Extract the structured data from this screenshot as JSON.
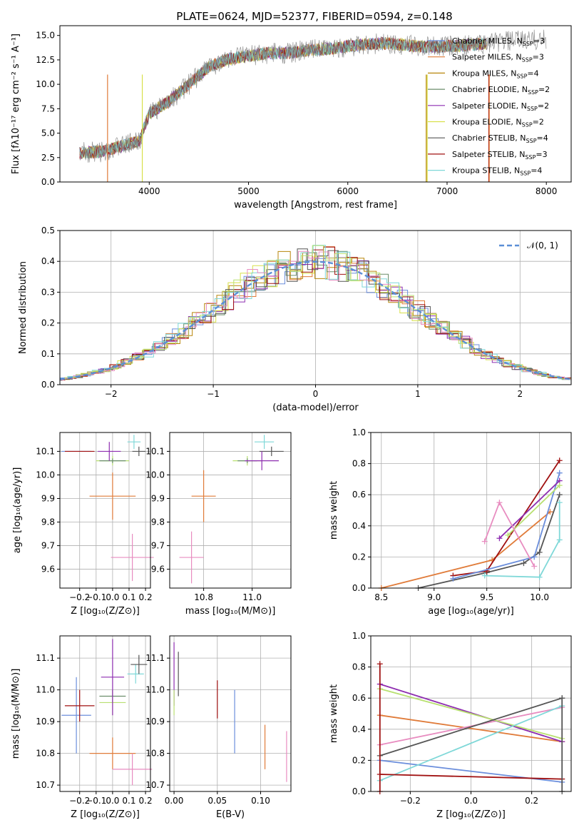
{
  "title": "PLATE=0624, MJD=52377, FIBERID=0594, z=0.148",
  "colors": {
    "chabrier_miles": "#6b8edc",
    "salpeter_miles": "#e07b39",
    "kroupa_miles": "#b8860b",
    "chabrier_elodie": "#6b8e6b",
    "salpeter_elodie": "#8e2db0",
    "kroupa_elodie": "#d8e04a",
    "chabrier_stelib": "#555555",
    "salpeter_stelib": "#a01010",
    "kroupa_stelib": "#7fd8d8",
    "extra_pink": "#e88cc0",
    "extra_lime": "#b8e070",
    "normal_curve": "#5b8fd6"
  },
  "chart_data": [
    {
      "id": "spectrum",
      "type": "line",
      "title": "PLATE=0624, MJD=52377, FIBERID=0594, z=0.148",
      "xlabel": "wavelength [Angstrom, rest frame]",
      "ylabel": "Flux [fλ10⁻¹⁷ erg cm⁻² s⁻¹ A⁻¹]",
      "xlim": [
        3100,
        8250
      ],
      "ylim": [
        0,
        16
      ],
      "xticks": [
        4000,
        5000,
        6000,
        7000,
        8000
      ],
      "yticks": [
        0.0,
        2.5,
        5.0,
        7.5,
        10.0,
        12.5,
        15.0
      ],
      "legend": [
        {
          "label": "Chabrier MILES, N",
          "sub": "SSP",
          "suffix": "=3",
          "color": "#6b8edc"
        },
        {
          "label": "Salpeter MILES, N",
          "sub": "SSP",
          "suffix": "=3",
          "color": "#e07b39"
        },
        {
          "label": "Kroupa MILES, N",
          "sub": "SSP",
          "suffix": "=4",
          "color": "#b8860b"
        },
        {
          "label": "Chabrier ELODIE, N",
          "sub": "SSP",
          "suffix": "=2",
          "color": "#6b8e6b"
        },
        {
          "label": "Salpeter ELODIE, N",
          "sub": "SSP",
          "suffix": "=2",
          "color": "#8e2db0"
        },
        {
          "label": "Kroupa ELODIE, N",
          "sub": "SSP",
          "suffix": "=2",
          "color": "#d8e04a"
        },
        {
          "label": "Chabrier STELIB, N",
          "sub": "SSP",
          "suffix": "=4",
          "color": "#555555"
        },
        {
          "label": "Salpeter STELIB, N",
          "sub": "SSP",
          "suffix": "=3",
          "color": "#a01010"
        },
        {
          "label": "Kroupa STELIB, N",
          "sub": "SSP",
          "suffix": "=4",
          "color": "#7fd8d8"
        }
      ],
      "series": [
        {
          "name": "data",
          "color": "#808080",
          "x": [
            3300,
            3500,
            3700,
            3900,
            4000,
            4200,
            4400,
            4600,
            4800,
            5000,
            5200,
            5400,
            5600,
            5800,
            6000,
            6200,
            6400,
            6600,
            6800,
            7000,
            7200,
            7400,
            7600,
            7800,
            8000
          ],
          "y": [
            3.0,
            3.1,
            3.6,
            4.2,
            7.0,
            8.3,
            10.0,
            11.8,
            12.6,
            12.9,
            13.2,
            13.2,
            13.5,
            13.6,
            13.9,
            14.1,
            14.2,
            14.0,
            13.8,
            13.9,
            14.0,
            14.2,
            14.4,
            14.5,
            14.6
          ]
        },
        {
          "name": "model",
          "color": "#7fd8d8",
          "x": [
            3300,
            3500,
            3700,
            3900,
            4000,
            4200,
            4400,
            4600,
            4800,
            5000,
            5200,
            5400,
            5600,
            5800,
            6000,
            6200,
            6400,
            6600,
            6800,
            7000,
            7200,
            7400
          ],
          "y": [
            3.1,
            3.1,
            3.7,
            4.3,
            7.0,
            8.4,
            10.1,
            11.9,
            12.6,
            12.9,
            13.1,
            13.2,
            13.5,
            13.7,
            13.9,
            14.0,
            14.1,
            14.0,
            13.8,
            13.8,
            14.0,
            14.0
          ]
        }
      ]
    },
    {
      "id": "residuals",
      "type": "line",
      "xlabel": "(data-model)/error",
      "ylabel": "Normed distribution",
      "xlim": [
        -2.5,
        2.5
      ],
      "ylim": [
        0,
        0.5
      ],
      "xticks": [
        -2,
        -1,
        0,
        1,
        2
      ],
      "yticks": [
        0.0,
        0.1,
        0.2,
        0.3,
        0.4,
        0.5
      ],
      "legend": [
        {
          "label": "𝒩(0, 1)",
          "color": "#5b8fd6"
        }
      ],
      "histogram": {
        "x": [
          -2.5,
          -2.3,
          -2.1,
          -1.9,
          -1.7,
          -1.5,
          -1.3,
          -1.1,
          -0.9,
          -0.7,
          -0.5,
          -0.3,
          -0.1,
          0.1,
          0.3,
          0.5,
          0.7,
          0.9,
          1.1,
          1.3,
          1.5,
          1.7,
          1.9,
          2.1,
          2.3
        ],
        "y": [
          0.02,
          0.04,
          0.06,
          0.09,
          0.12,
          0.16,
          0.2,
          0.25,
          0.3,
          0.34,
          0.37,
          0.39,
          0.4,
          0.39,
          0.37,
          0.34,
          0.3,
          0.25,
          0.2,
          0.16,
          0.12,
          0.09,
          0.06,
          0.04,
          0.02
        ]
      }
    },
    {
      "id": "age-vs-Z",
      "type": "scatter",
      "xlabel": "Z [log₁₀(Z/Z⊙)]",
      "ylabel": "age  [log₁₀(age/yr)]",
      "xlim": [
        -0.32,
        0.23
      ],
      "ylim": [
        9.52,
        10.18
      ],
      "xticks": [
        -0.2,
        -0.1,
        0.0,
        0.1,
        0.2
      ],
      "yticks": [
        9.6,
        9.7,
        9.8,
        9.9,
        10.0,
        10.1
      ],
      "points": [
        {
          "x": -0.22,
          "y": 10.1,
          "xerr": 0.09,
          "yerr": 0.0,
          "color": "#6b8edc"
        },
        {
          "x": -0.2,
          "y": 10.1,
          "xerr": 0.09,
          "yerr": 0.0,
          "color": "#a01010"
        },
        {
          "x": 0.0,
          "y": 9.91,
          "xerr": 0.14,
          "yerr": 0.1,
          "color": "#e07b39"
        },
        {
          "x": 0.12,
          "y": 9.65,
          "xerr": 0.13,
          "yerr": 0.1,
          "color": "#e88cc0"
        },
        {
          "x": 0.0,
          "y": 10.06,
          "xerr": 0.1,
          "yerr": 0.02,
          "color": "#b8e070"
        },
        {
          "x": 0.0,
          "y": 10.06,
          "xerr": 0.08,
          "yerr": 0.01,
          "color": "#6b8e6b"
        },
        {
          "x": 0.13,
          "y": 10.14,
          "xerr": 0.04,
          "yerr": 0.03,
          "color": "#7fd8d8"
        },
        {
          "x": 0.16,
          "y": 10.1,
          "xerr": 0.04,
          "yerr": 0.02,
          "color": "#555555"
        },
        {
          "x": -0.02,
          "y": 10.1,
          "xerr": 0.07,
          "yerr": 0.04,
          "color": "#8e2db0"
        }
      ]
    },
    {
      "id": "age-vs-mass",
      "type": "scatter",
      "xlabel": "mass [log₁₀(M/M⊙)]",
      "ylabel": "",
      "xlim": [
        10.66,
        11.16
      ],
      "ylim": [
        9.52,
        10.18
      ],
      "xticks": [
        10.8,
        11.0
      ],
      "yticks": [
        9.6,
        9.7,
        9.8,
        9.9,
        10.0,
        10.1
      ],
      "points": [
        {
          "x": 10.92,
          "y": 10.1,
          "xerr": 0.0,
          "yerr": 0.0,
          "color": "#6b8edc"
        },
        {
          "x": 10.96,
          "y": 10.1,
          "xerr": 0.0,
          "yerr": 0.0,
          "color": "#a01010"
        },
        {
          "x": 10.8,
          "y": 9.91,
          "xerr": 0.05,
          "yerr": 0.11,
          "color": "#e07b39"
        },
        {
          "x": 10.75,
          "y": 9.65,
          "xerr": 0.05,
          "yerr": 0.11,
          "color": "#e88cc0"
        },
        {
          "x": 10.98,
          "y": 10.06,
          "xerr": 0.06,
          "yerr": 0.02,
          "color": "#b8e070"
        },
        {
          "x": 10.98,
          "y": 10.06,
          "xerr": 0.04,
          "yerr": 0.01,
          "color": "#6b8e6b"
        },
        {
          "x": 11.05,
          "y": 10.14,
          "xerr": 0.04,
          "yerr": 0.03,
          "color": "#7fd8d8"
        },
        {
          "x": 11.08,
          "y": 10.1,
          "xerr": 0.05,
          "yerr": 0.02,
          "color": "#555555"
        },
        {
          "x": 11.04,
          "y": 10.06,
          "xerr": 0.07,
          "yerr": 0.04,
          "color": "#8e2db0"
        }
      ]
    },
    {
      "id": "massweight-vs-age",
      "type": "line",
      "xlabel": "age  [log₁₀(age/yr)]",
      "ylabel": "mass weight",
      "xlim": [
        8.4,
        10.3
      ],
      "ylim": [
        0,
        1
      ],
      "xticks": [
        8.5,
        9.0,
        9.5,
        10.0
      ],
      "yticks": [
        0.0,
        0.2,
        0.4,
        0.6,
        0.8,
        1.0
      ],
      "series": [
        {
          "color": "#e07b39",
          "x": [
            8.5,
            9.55,
            10.1
          ],
          "y": [
            0.0,
            0.18,
            0.49
          ]
        },
        {
          "color": "#555555",
          "x": [
            8.85,
            9.5,
            9.85,
            10.0,
            10.19
          ],
          "y": [
            0.0,
            0.1,
            0.16,
            0.23,
            0.6
          ]
        },
        {
          "color": "#a01010",
          "x": [
            9.18,
            9.5,
            10.19
          ],
          "y": [
            0.08,
            0.11,
            0.82
          ]
        },
        {
          "color": "#6b8edc",
          "x": [
            9.18,
            9.95,
            10.19
          ],
          "y": [
            0.06,
            0.2,
            0.74
          ]
        },
        {
          "color": "#8e2db0",
          "x": [
            9.62,
            10.19
          ],
          "y": [
            0.32,
            0.69
          ]
        },
        {
          "color": "#b8e070",
          "x": [
            9.7,
            10.19
          ],
          "y": [
            0.34,
            0.66
          ]
        },
        {
          "color": "#e88cc0",
          "x": [
            9.48,
            9.62,
            9.95
          ],
          "y": [
            0.3,
            0.55,
            0.14
          ]
        },
        {
          "color": "#7fd8d8",
          "x": [
            9.48,
            10.0,
            10.19,
            10.19
          ],
          "y": [
            0.08,
            0.07,
            0.31,
            0.55
          ]
        }
      ]
    },
    {
      "id": "mass-vs-Z",
      "type": "scatter",
      "xlabel": "Z [log₁₀(Z/Z⊙)]",
      "ylabel": "mass [log₁₀(M/M⊙)]",
      "xlim": [
        -0.32,
        0.23
      ],
      "ylim": [
        10.68,
        11.17
      ],
      "xticks": [
        -0.2,
        -0.1,
        0.0,
        0.1,
        0.2
      ],
      "yticks": [
        10.7,
        10.8,
        10.9,
        11.0,
        11.1
      ],
      "points": [
        {
          "x": -0.22,
          "y": 10.92,
          "xerr": 0.09,
          "yerr": 0.12,
          "color": "#6b8edc"
        },
        {
          "x": -0.2,
          "y": 10.95,
          "xerr": 0.09,
          "yerr": 0.05,
          "color": "#a01010"
        },
        {
          "x": 0.0,
          "y": 10.8,
          "xerr": 0.14,
          "yerr": 0.05,
          "color": "#e07b39"
        },
        {
          "x": 0.12,
          "y": 10.75,
          "xerr": 0.12,
          "yerr": 0.05,
          "color": "#e88cc0"
        },
        {
          "x": 0.0,
          "y": 10.96,
          "xerr": 0.08,
          "yerr": 0.04,
          "color": "#b8e070"
        },
        {
          "x": 0.0,
          "y": 10.98,
          "xerr": 0.08,
          "yerr": 0.02,
          "color": "#6b8e6b"
        },
        {
          "x": 0.14,
          "y": 11.05,
          "xerr": 0.05,
          "yerr": 0.03,
          "color": "#7fd8d8"
        },
        {
          "x": 0.16,
          "y": 11.08,
          "xerr": 0.05,
          "yerr": 0.03,
          "color": "#555555"
        },
        {
          "x": 0.0,
          "y": 11.04,
          "xerr": 0.07,
          "yerr": 0.12,
          "color": "#8e2db0"
        }
      ]
    },
    {
      "id": "mass-vs-EBV",
      "type": "scatter",
      "xlabel": "E(B-V)",
      "ylabel": "",
      "xlim": [
        -0.005,
        0.135
      ],
      "ylim": [
        10.68,
        11.17
      ],
      "xticks": [
        0.0,
        0.05,
        0.1
      ],
      "yticks": [
        10.7,
        10.8,
        10.9,
        11.0,
        11.1
      ],
      "points": [
        {
          "x": 0.0,
          "y": 11.05,
          "xerr": 0.0,
          "yerr": 0.1,
          "color": "#8e2db0"
        },
        {
          "x": 0.0,
          "y": 10.96,
          "xerr": 0.0,
          "yerr": 0.04,
          "color": "#b8e070"
        },
        {
          "x": 0.005,
          "y": 11.05,
          "xerr": 0.0,
          "yerr": 0.07,
          "color": "#555555"
        },
        {
          "x": 0.05,
          "y": 10.97,
          "xerr": 0.0,
          "yerr": 0.06,
          "color": "#a01010"
        },
        {
          "x": 0.07,
          "y": 10.9,
          "xerr": 0.0,
          "yerr": 0.1,
          "color": "#6b8edc"
        },
        {
          "x": 0.105,
          "y": 10.82,
          "xerr": 0.0,
          "yerr": 0.07,
          "color": "#e07b39"
        },
        {
          "x": 0.13,
          "y": 10.79,
          "xerr": 0.0,
          "yerr": 0.08,
          "color": "#e88cc0"
        }
      ]
    },
    {
      "id": "massweight-vs-Z",
      "type": "line",
      "xlabel": "Z [log₁₀(Z/Z⊙)]",
      "ylabel": "mass weight",
      "xlim": [
        -0.33,
        0.33
      ],
      "ylim": [
        0,
        1
      ],
      "xticks": [
        -0.2,
        0.0,
        0.2
      ],
      "yticks": [
        0.0,
        0.2,
        0.4,
        0.6,
        0.8,
        1.0
      ],
      "series": [
        {
          "color": "#6b8edc",
          "x": [
            -0.3,
            0.3
          ],
          "y": [
            0.2,
            0.06
          ]
        },
        {
          "color": "#e07b39",
          "x": [
            -0.3,
            0.3
          ],
          "y": [
            0.49,
            0.32
          ]
        },
        {
          "color": "#e88cc0",
          "x": [
            -0.3,
            0.3
          ],
          "y": [
            0.3,
            0.54
          ]
        },
        {
          "color": "#8e2db0",
          "x": [
            -0.3,
            0.3
          ],
          "y": [
            0.69,
            0.32
          ]
        },
        {
          "color": "#b8e070",
          "x": [
            -0.3,
            0.3
          ],
          "y": [
            0.66,
            0.34
          ]
        },
        {
          "color": "#555555",
          "x": [
            -0.3,
            0.3
          ],
          "y": [
            0.23,
            0.6
          ]
        },
        {
          "color": "#7fd8d8",
          "x": [
            -0.3,
            0.3
          ],
          "y": [
            0.07,
            0.55
          ]
        },
        {
          "color": "#a01010",
          "x": [
            -0.3,
            0.3
          ],
          "y": [
            0.11,
            0.08
          ]
        },
        {
          "color": "#a01010",
          "x": [
            -0.3,
            -0.3
          ],
          "y": [
            0.0,
            0.82
          ]
        },
        {
          "color": "#555555",
          "x": [
            0.3,
            0.3
          ],
          "y": [
            0.0,
            0.6
          ]
        }
      ]
    }
  ]
}
